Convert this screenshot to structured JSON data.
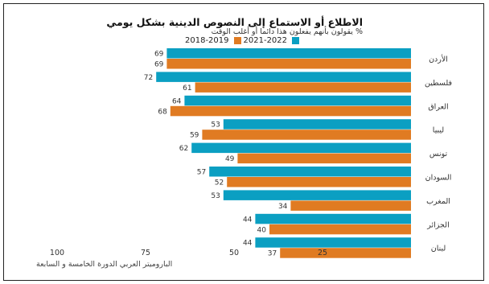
{
  "chart_data": {
    "type": "bar",
    "orientation": "horizontal",
    "title": "الاطلاع أو الاستماع إلى النصوص الدينية بشكل يومي",
    "subtitle": "% يقولون بأنهم يفعلون هذا دائما أو أغلب الوقت",
    "categories": [
      "الأردن",
      "فلسطين",
      "العراق",
      "ليبيا",
      "تونس",
      "السودان",
      "المغرب",
      "الجزائر",
      "لبنان"
    ],
    "series": [
      {
        "name": "2021-2022",
        "color": "#0b9fc2",
        "values": [
          69,
          72,
          64,
          53,
          62,
          57,
          53,
          44,
          44
        ]
      },
      {
        "name": "2018-2019",
        "color": "#e07b22",
        "values": [
          69,
          61,
          68,
          59,
          49,
          52,
          34,
          40,
          37
        ]
      }
    ],
    "xaxis": {
      "reversed": true,
      "ticks": [
        100,
        75,
        50,
        25
      ],
      "xlim": [
        0,
        100
      ]
    },
    "legend_position": "top",
    "grid": false,
    "source": "الباروميتر العربي الدورة الخامسة و السابعة"
  }
}
